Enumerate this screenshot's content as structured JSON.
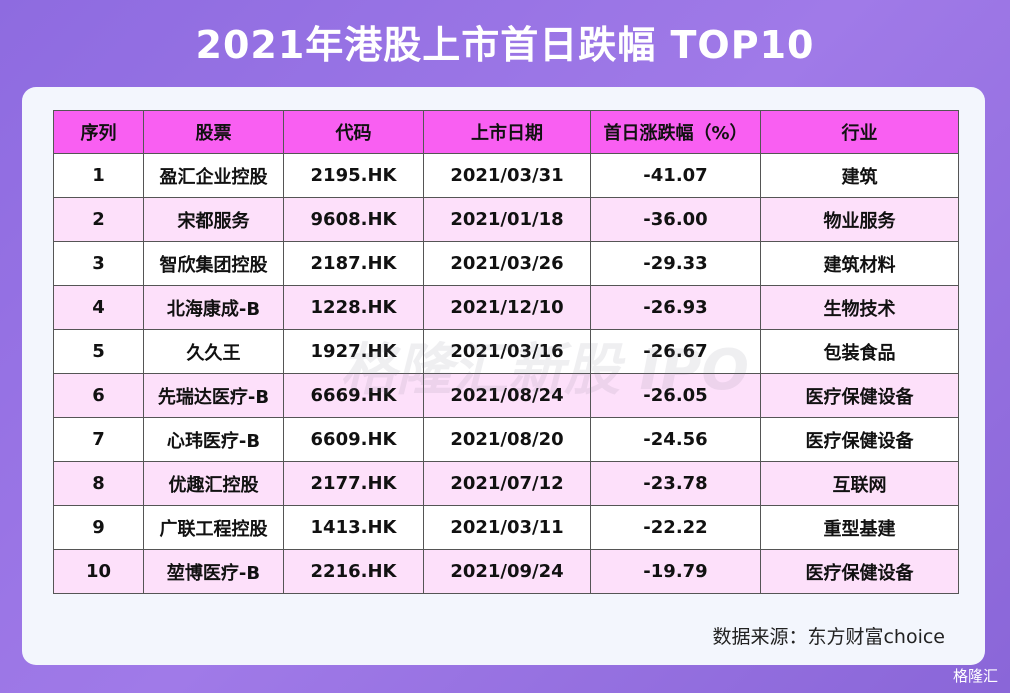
{
  "header": {
    "title": "2021年港股上市首日跌幅 TOP10"
  },
  "table": {
    "columns": [
      "序列",
      "股票",
      "代码",
      "上市日期",
      "首日涨跌幅（%）",
      "行业"
    ],
    "rows": [
      [
        "1",
        "盈汇企业控股",
        "2195.HK",
        "2021/03/31",
        "-41.07",
        "建筑"
      ],
      [
        "2",
        "宋都服务",
        "9608.HK",
        "2021/01/18",
        "-36.00",
        "物业服务"
      ],
      [
        "3",
        "智欣集团控股",
        "2187.HK",
        "2021/03/26",
        "-29.33",
        "建筑材料"
      ],
      [
        "4",
        "北海康成-B",
        "1228.HK",
        "2021/12/10",
        "-26.93",
        "生物技术"
      ],
      [
        "5",
        "久久王",
        "1927.HK",
        "2021/03/16",
        "-26.67",
        "包装食品"
      ],
      [
        "6",
        "先瑞达医疗-B",
        "6669.HK",
        "2021/08/24",
        "-26.05",
        "医疗保健设备"
      ],
      [
        "7",
        "心玮医疗-B",
        "6609.HK",
        "2021/08/20",
        "-24.56",
        "医疗保健设备"
      ],
      [
        "8",
        "优趣汇控股",
        "2177.HK",
        "2021/07/12",
        "-23.78",
        "互联网"
      ],
      [
        "9",
        "广联工程控股",
        "1413.HK",
        "2021/03/11",
        "-22.22",
        "重型基建"
      ],
      [
        "10",
        "堃博医疗-B",
        "2216.HK",
        "2021/09/24",
        "-19.79",
        "医疗保健设备"
      ]
    ]
  },
  "source": "数据来源：东方财富choice",
  "watermark": "格隆汇新股 IPO",
  "logo": "格隆汇"
}
